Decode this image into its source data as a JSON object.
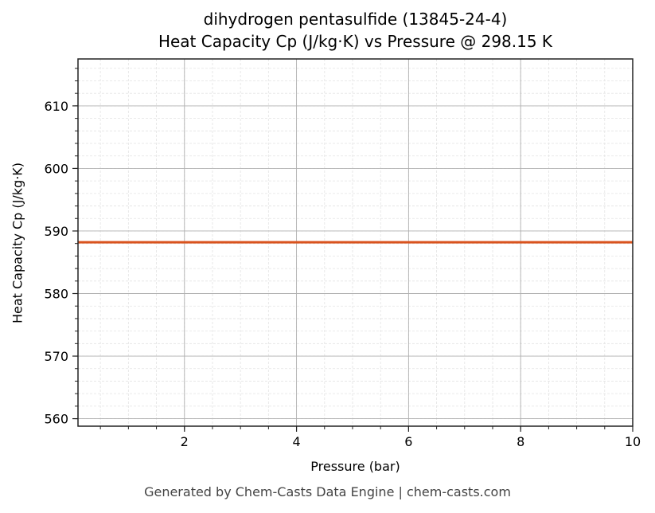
{
  "chart_data": {
    "type": "line",
    "title": "dihydrogen pentasulfide (13845-24-4)",
    "subtitle": "Heat Capacity Cp (J/kg·K) vs Pressure @ 298.15 K",
    "xlabel": "Pressure (bar)",
    "ylabel": "Heat Capacity Cp (J/kg·K)",
    "xlim": [
      0.1,
      10
    ],
    "ylim": [
      558.8,
      617.5
    ],
    "x_ticks": [
      2,
      4,
      6,
      8,
      10
    ],
    "y_ticks": [
      560,
      570,
      580,
      590,
      600,
      610
    ],
    "grid": true,
    "minor_grid": true,
    "legend": null,
    "series": [
      {
        "name": "Cp",
        "color": "#d9531e",
        "x": [
          0.1,
          1,
          2,
          3,
          4,
          5,
          6,
          7,
          8,
          9,
          10
        ],
        "values": [
          588.2,
          588.2,
          588.2,
          588.2,
          588.2,
          588.2,
          588.2,
          588.2,
          588.2,
          588.2,
          588.2
        ]
      }
    ]
  },
  "footer": "Generated by Chem-Casts Data Engine | chem-casts.com"
}
